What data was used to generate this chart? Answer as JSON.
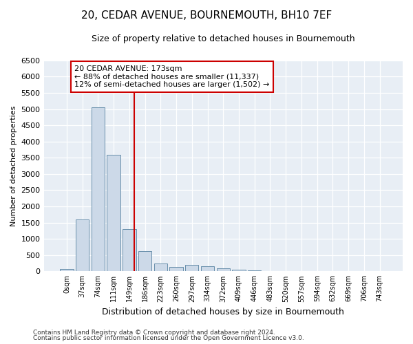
{
  "title": "20, CEDAR AVENUE, BOURNEMOUTH, BH10 7EF",
  "subtitle": "Size of property relative to detached houses in Bournemouth",
  "xlabel": "Distribution of detached houses by size in Bournemouth",
  "ylabel": "Number of detached properties",
  "bin_labels": [
    "0sqm",
    "37sqm",
    "74sqm",
    "111sqm",
    "149sqm",
    "186sqm",
    "223sqm",
    "260sqm",
    "297sqm",
    "334sqm",
    "372sqm",
    "409sqm",
    "446sqm",
    "483sqm",
    "520sqm",
    "557sqm",
    "594sqm",
    "632sqm",
    "669sqm",
    "706sqm",
    "743sqm"
  ],
  "bar_values": [
    75,
    1600,
    5050,
    3600,
    1300,
    620,
    250,
    130,
    200,
    150,
    100,
    50,
    20,
    10,
    5,
    5,
    3,
    2,
    2,
    1,
    0
  ],
  "bar_color": "#ccd9e8",
  "bar_edge_color": "#5580a0",
  "grid_color": "#d0d8e8",
  "background_color": "#e8eef5",
  "fig_background": "#ffffff",
  "vline_x": 4.3,
  "vline_color": "#cc0000",
  "annotation_text": "20 CEDAR AVENUE: 173sqm\n← 88% of detached houses are smaller (11,337)\n12% of semi-detached houses are larger (1,502) →",
  "annotation_box_color": "#ffffff",
  "annotation_box_edge": "#cc0000",
  "ylim": [
    0,
    6500
  ],
  "yticks": [
    0,
    500,
    1000,
    1500,
    2000,
    2500,
    3000,
    3500,
    4000,
    4500,
    5000,
    5500,
    6000,
    6500
  ],
  "footer1": "Contains HM Land Registry data © Crown copyright and database right 2024.",
  "footer2": "Contains public sector information licensed under the Open Government Licence v3.0."
}
